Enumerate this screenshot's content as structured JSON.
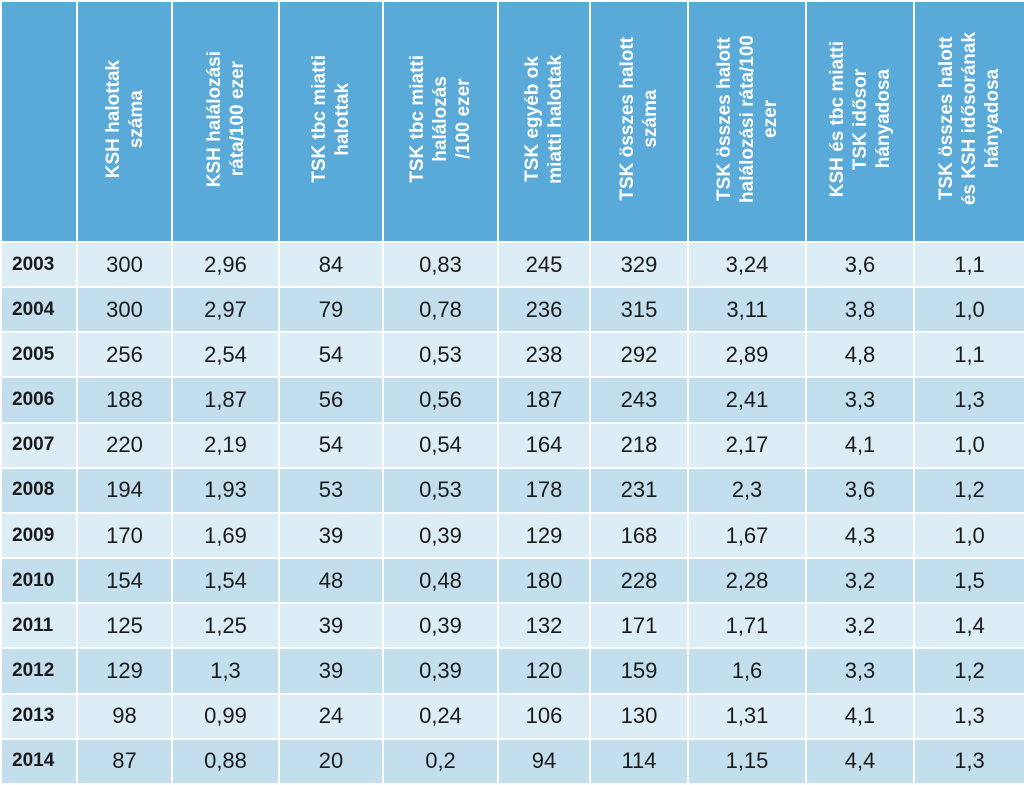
{
  "columns": [
    "KSH halottak\nszáma",
    "KSH halálozási\nráta/100 ezer",
    "TSK tbc miatti\nhalottak",
    "TSK tbc miatti\nhalálozás\n/100 ezer",
    "TSK egyéb ok\nmiatti halottak",
    "TSK összes halott\nszáma",
    "TSK összes halott\nhalálozási ráta/100\nezer",
    "KSH és tbc miatti\nTSK idősor\nhányadosa",
    "TSK összes halott\nés KSH idősorának\nhányadosa"
  ],
  "rows": [
    {
      "year": "2003",
      "cells": [
        "300",
        "2,96",
        "84",
        "0,83",
        "245",
        "329",
        "3,24",
        "3,6",
        "1,1"
      ]
    },
    {
      "year": "2004",
      "cells": [
        "300",
        "2,97",
        "79",
        "0,78",
        "236",
        "315",
        "3,11",
        "3,8",
        "1,0"
      ]
    },
    {
      "year": "2005",
      "cells": [
        "256",
        "2,54",
        "54",
        "0,53",
        "238",
        "292",
        "2,89",
        "4,8",
        "1,1"
      ]
    },
    {
      "year": "2006",
      "cells": [
        "188",
        "1,87",
        "56",
        "0,56",
        "187",
        "243",
        "2,41",
        "3,3",
        "1,3"
      ]
    },
    {
      "year": "2007",
      "cells": [
        "220",
        "2,19",
        "54",
        "0,54",
        "164",
        "218",
        "2,17",
        "4,1",
        "1,0"
      ]
    },
    {
      "year": "2008",
      "cells": [
        "194",
        "1,93",
        "53",
        "0,53",
        "178",
        "231",
        "2,3",
        "3,6",
        "1,2"
      ]
    },
    {
      "year": "2009",
      "cells": [
        "170",
        "1,69",
        "39",
        "0,39",
        "129",
        "168",
        "1,67",
        "4,3",
        "1,0"
      ]
    },
    {
      "year": "2010",
      "cells": [
        "154",
        "1,54",
        "48",
        "0,48",
        "180",
        "228",
        "2,28",
        "3,2",
        "1,5"
      ]
    },
    {
      "year": "2011",
      "cells": [
        "125",
        "1,25",
        "39",
        "0,39",
        "132",
        "171",
        "1,71",
        "3,2",
        "1,4"
      ]
    },
    {
      "year": "2012",
      "cells": [
        "129",
        "1,3",
        "39",
        "0,39",
        "120",
        "159",
        "1,6",
        "3,3",
        "1,2"
      ]
    },
    {
      "year": "2013",
      "cells": [
        "98",
        "0,99",
        "24",
        "0,24",
        "106",
        "130",
        "1,31",
        "4,1",
        "1,3"
      ]
    },
    {
      "year": "2014",
      "cells": [
        "87",
        "0,88",
        "20",
        "0,2",
        "94",
        "114",
        "1,15",
        "4,4",
        "1,3"
      ]
    }
  ]
}
